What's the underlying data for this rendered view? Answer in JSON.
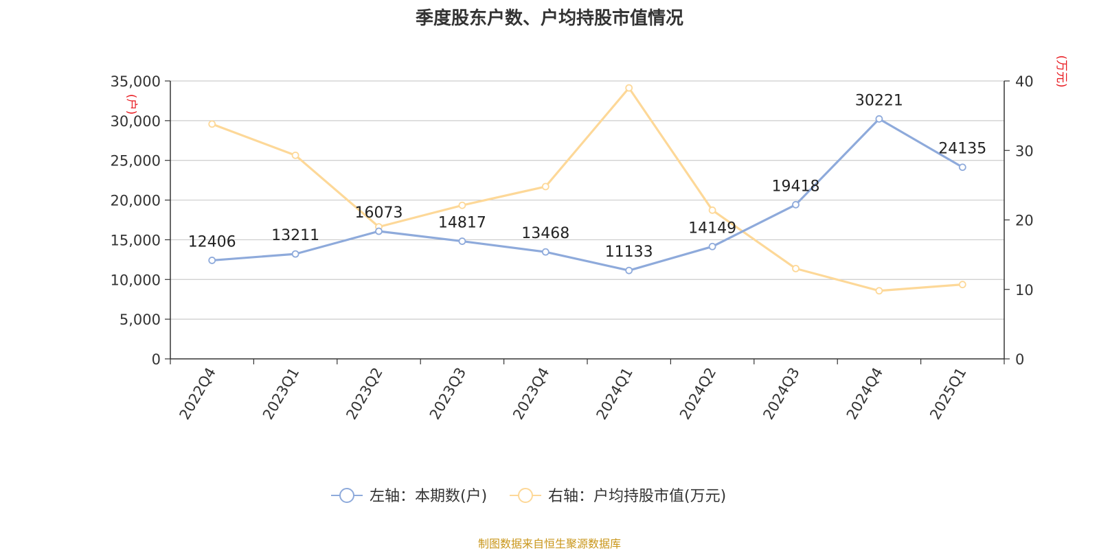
{
  "chart_data": {
    "type": "line",
    "title": "季度股东户数、户均持股市值情况",
    "categories": [
      "2022Q4",
      "2023Q1",
      "2023Q2",
      "2023Q3",
      "2023Q4",
      "2024Q1",
      "2024Q2",
      "2024Q3",
      "2024Q4",
      "2025Q1"
    ],
    "left_axis": {
      "unit_label": "(户)",
      "ylim": [
        0,
        35000
      ],
      "ticks": [
        0,
        5000,
        10000,
        15000,
        20000,
        25000,
        30000,
        35000
      ],
      "tick_labels": [
        "0",
        "5,000",
        "10,000",
        "15,000",
        "20,000",
        "25,000",
        "30,000",
        "35,000"
      ]
    },
    "right_axis": {
      "unit_label": "(万元)",
      "ylim": [
        0,
        40
      ],
      "ticks": [
        0,
        10,
        20,
        30,
        40
      ],
      "tick_labels": [
        "0",
        "10",
        "20",
        "30",
        "40"
      ]
    },
    "series": [
      {
        "name": "左轴：本期数(户)",
        "axis": "left",
        "color": "#8eaadb",
        "values": [
          12406,
          13211,
          16073,
          14817,
          13468,
          11133,
          14149,
          19418,
          30221,
          24135
        ],
        "data_labels": [
          "12406",
          "13211",
          "16073",
          "14817",
          "13468",
          "11133",
          "14149",
          "19418",
          "30221",
          "24135"
        ]
      },
      {
        "name": "右轴：户均持股市值(万元)",
        "axis": "right",
        "color": "#fdd898",
        "values": [
          33.8,
          29.3,
          19.0,
          22.1,
          24.8,
          39.0,
          21.4,
          13.0,
          9.8,
          10.7
        ]
      }
    ],
    "grid": true,
    "legend_position": "bottom"
  },
  "colors": {
    "grid": "#cccccc",
    "axis": "#333333",
    "unit_label": "#e8191f",
    "source": "#c9961a"
  },
  "source_text": "制图数据来自恒生聚源数据库"
}
